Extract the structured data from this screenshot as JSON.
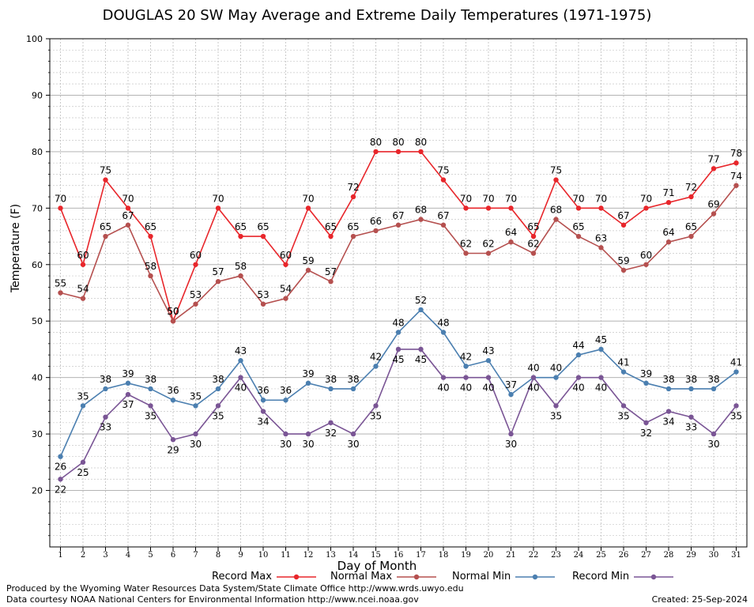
{
  "chart_data": {
    "type": "line",
    "title": "DOUGLAS 20 SW May Average and Extreme Daily Temperatures (1971-1975)",
    "xlabel": "Day of Month",
    "ylabel": "Temperature (F)",
    "ylim": [
      10,
      100
    ],
    "yticks": [
      20,
      30,
      40,
      50,
      60,
      70,
      80,
      90,
      100
    ],
    "x": [
      1,
      2,
      3,
      4,
      5,
      6,
      7,
      8,
      9,
      10,
      11,
      12,
      13,
      14,
      15,
      16,
      17,
      18,
      19,
      20,
      21,
      22,
      23,
      24,
      25,
      26,
      27,
      28,
      29,
      30,
      31
    ],
    "grid": true,
    "legend_position": "bottom",
    "series": [
      {
        "name": "Record Max",
        "color": "#e8262b",
        "values": [
          70,
          60,
          75,
          70,
          65,
          50,
          60,
          70,
          65,
          65,
          60,
          70,
          65,
          72,
          80,
          80,
          80,
          75,
          70,
          70,
          70,
          65,
          75,
          70,
          70,
          67,
          70,
          71,
          72,
          77,
          78
        ]
      },
      {
        "name": "Normal Max",
        "color": "#b5504f",
        "values": [
          55,
          54,
          65,
          67,
          58,
          50,
          53,
          57,
          58,
          53,
          54,
          59,
          57,
          65,
          66,
          67,
          68,
          67,
          62,
          62,
          64,
          62,
          68,
          65,
          63,
          59,
          60,
          64,
          65,
          69,
          74
        ]
      },
      {
        "name": "Normal Min",
        "color": "#4b7fb0",
        "values": [
          26,
          35,
          38,
          39,
          38,
          36,
          35,
          38,
          43,
          36,
          36,
          39,
          38,
          38,
          42,
          48,
          52,
          48,
          42,
          43,
          37,
          40,
          40,
          44,
          45,
          41,
          39,
          38,
          38,
          38,
          41
        ]
      },
      {
        "name": "Record Min",
        "color": "#7a5595",
        "values": [
          22,
          25,
          33,
          37,
          35,
          29,
          30,
          35,
          40,
          34,
          30,
          30,
          32,
          30,
          35,
          45,
          45,
          40,
          40,
          40,
          30,
          40,
          35,
          40,
          40,
          35,
          32,
          34,
          33,
          30,
          35
        ]
      }
    ]
  },
  "footer": {
    "produced_by": "Produced by the Wyoming Water Resources Data System/State Climate Office http://www.wrds.uwyo.edu",
    "data_courtesy": "Data courtesy NOAA National Centers for Environmental Information http://www.ncei.noaa.gov",
    "created": "Created:  25-Sep-2024"
  }
}
